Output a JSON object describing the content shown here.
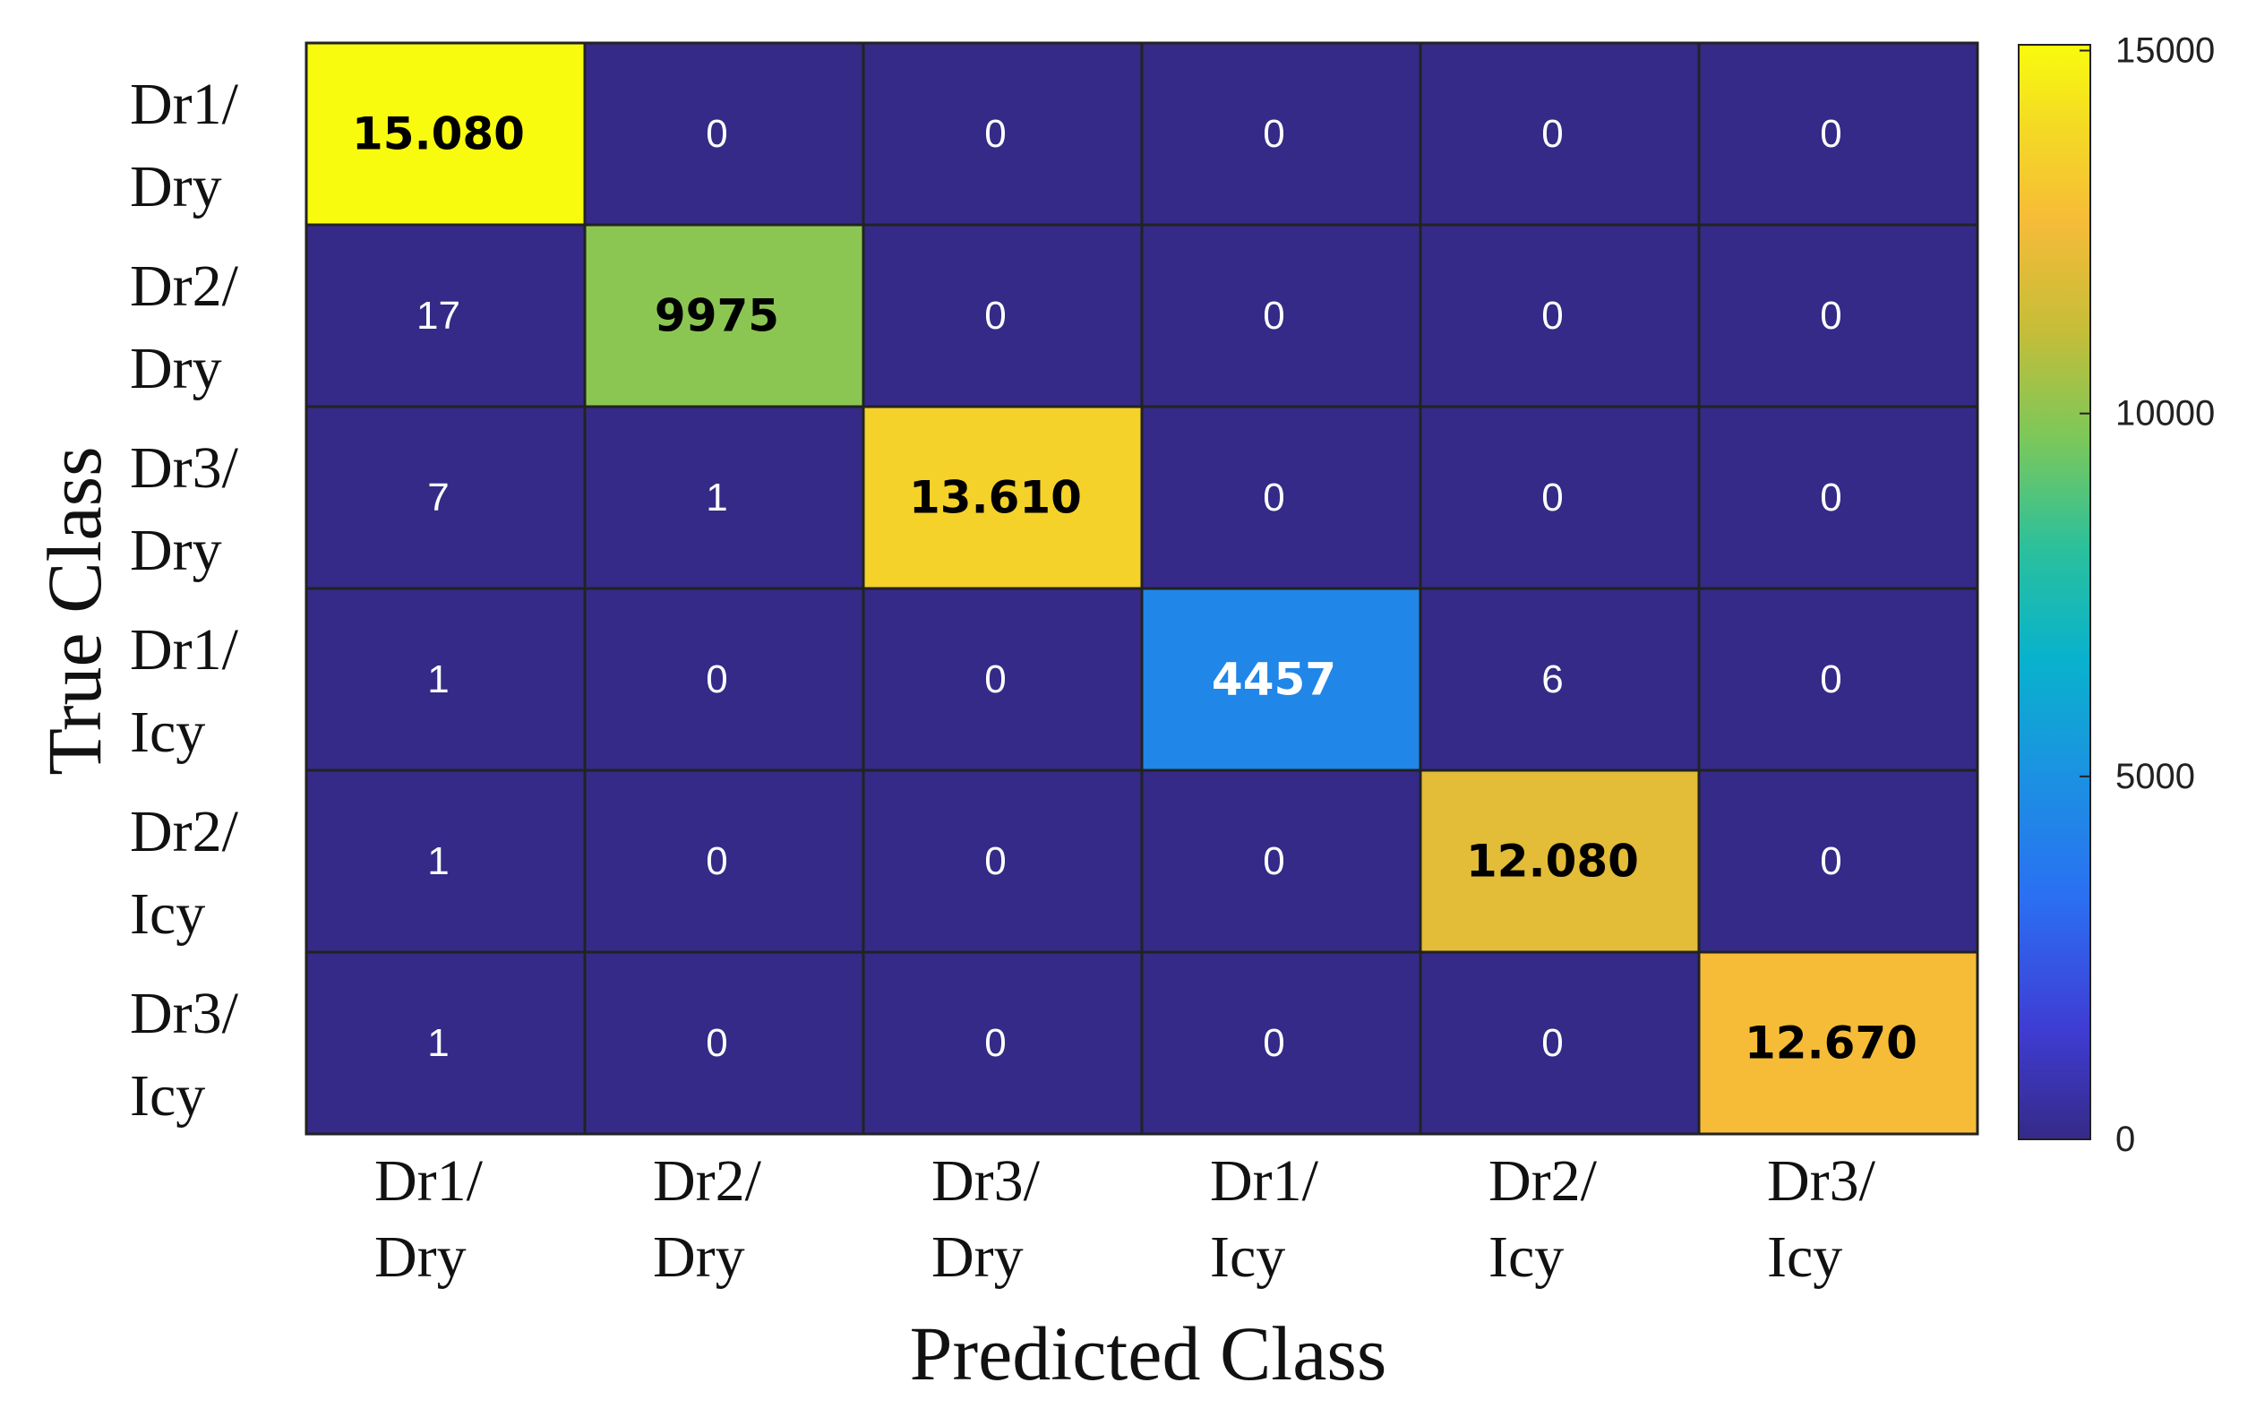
{
  "chart_data": {
    "type": "heatmap",
    "title": "",
    "xlabel": "Predicted Class",
    "ylabel": "True Class",
    "rows": [
      {
        "line1": "Dr1/",
        "line2": "Dry"
      },
      {
        "line1": "Dr2/",
        "line2": "Dry"
      },
      {
        "line1": "Dr3/",
        "line2": "Dry"
      },
      {
        "line1": "Dr1/",
        "line2": "Icy"
      },
      {
        "line1": "Dr2/",
        "line2": "Icy"
      },
      {
        "line1": "Dr3/",
        "line2": "Icy"
      }
    ],
    "columns": [
      {
        "line1": "Dr1/",
        "line2": "Dry"
      },
      {
        "line1": "Dr2/",
        "line2": "Dry"
      },
      {
        "line1": "Dr3/",
        "line2": "Dry"
      },
      {
        "line1": "Dr1/",
        "line2": "Icy"
      },
      {
        "line1": "Dr2/",
        "line2": "Icy"
      },
      {
        "line1": "Dr3/",
        "line2": "Icy"
      }
    ],
    "values": [
      [
        15080,
        0,
        0,
        0,
        0,
        0
      ],
      [
        17,
        9975,
        0,
        0,
        0,
        0
      ],
      [
        7,
        1,
        13610,
        0,
        0,
        0
      ],
      [
        1,
        0,
        0,
        4457,
        6,
        0
      ],
      [
        1,
        0,
        0,
        0,
        12080,
        0
      ],
      [
        1,
        0,
        0,
        0,
        0,
        12670
      ]
    ],
    "labels": [
      [
        "15.080",
        "0",
        "0",
        "0",
        "0",
        "0"
      ],
      [
        "17",
        "9975",
        "0",
        "0",
        "0",
        "0"
      ],
      [
        "7",
        "1",
        "13.610",
        "0",
        "0",
        "0"
      ],
      [
        "1",
        "0",
        "0",
        "4457",
        "6",
        "0"
      ],
      [
        "1",
        "0",
        "0",
        "0",
        "12.080",
        "0"
      ],
      [
        "1",
        "0",
        "0",
        "0",
        "0",
        "12.670"
      ]
    ],
    "colorbar": {
      "range": [
        0,
        15080
      ],
      "ticks": [
        0,
        5000,
        10000,
        15000
      ],
      "tick_labels": [
        "0",
        "5000",
        "10000",
        "15000"
      ],
      "colormap": "parula"
    }
  }
}
